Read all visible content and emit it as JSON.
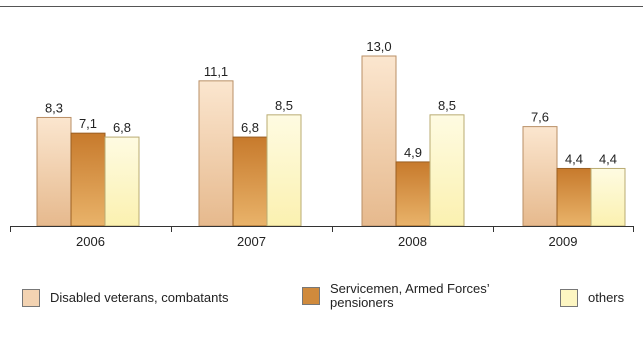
{
  "chart_data": {
    "type": "bar",
    "categories": [
      "2006",
      "2007",
      "2008",
      "2009"
    ],
    "series": [
      {
        "name": "Disabled veterans, combatants",
        "values": [
          8.3,
          11.1,
          13.0,
          7.6
        ],
        "labels": [
          "8,3",
          "11,1",
          "13,0",
          "7,6"
        ]
      },
      {
        "name": "Servicemen, Armed Forces’ pensioners",
        "values": [
          7.1,
          6.8,
          4.9,
          4.4
        ],
        "labels": [
          "7,1",
          "6,8",
          "4,9",
          "4,4"
        ]
      },
      {
        "name": "others",
        "values": [
          6.8,
          8.5,
          8.5,
          4.4
        ],
        "labels": [
          "6,8",
          "8,5",
          "8,5",
          "4,4"
        ]
      }
    ],
    "ylim": [
      0,
      14
    ],
    "grid": false,
    "legend_position": "bottom",
    "colors": [
      "#f3d3b2",
      "#d08a3c",
      "#fdf6c2"
    ]
  }
}
